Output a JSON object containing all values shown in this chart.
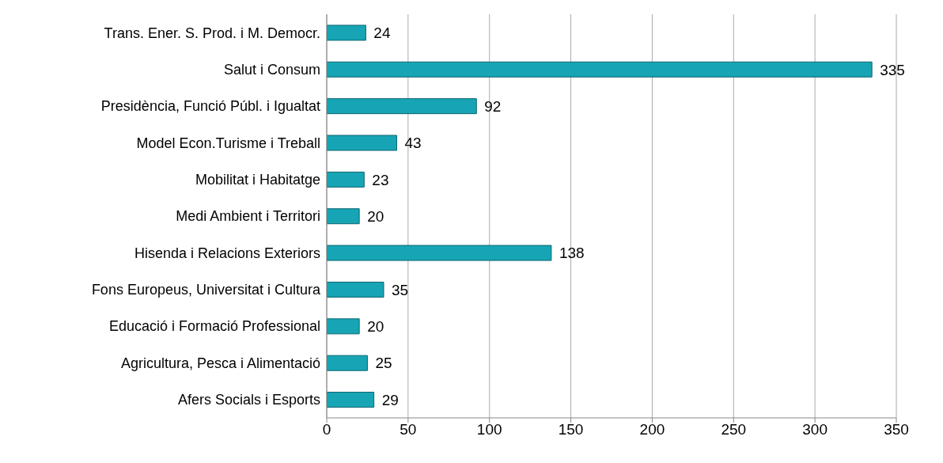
{
  "chart_data": {
    "type": "bar",
    "orientation": "horizontal",
    "categories": [
      "Trans. Ener. S. Prod. i M. Democr.",
      "Salut i Consum",
      "Presidència, Funció Públ. i Igualtat",
      "Model Econ.Turisme i Treball",
      "Mobilitat i Habitatge",
      "Medi Ambient i Territori",
      "Hisenda i Relacions Exteriors",
      "Fons Europeus, Universitat i Cultura",
      "Educació i Formació Professional",
      "Agricultura, Pesca i Alimentació",
      "Afers Socials i Esports"
    ],
    "values": [
      24,
      335,
      92,
      43,
      23,
      20,
      138,
      35,
      20,
      25,
      29
    ],
    "color": "#17a5b5",
    "xlim": [
      0,
      350
    ],
    "xticks": [
      0,
      50,
      100,
      150,
      200,
      250,
      300,
      350
    ],
    "grid": "x",
    "data_labels": true
  }
}
